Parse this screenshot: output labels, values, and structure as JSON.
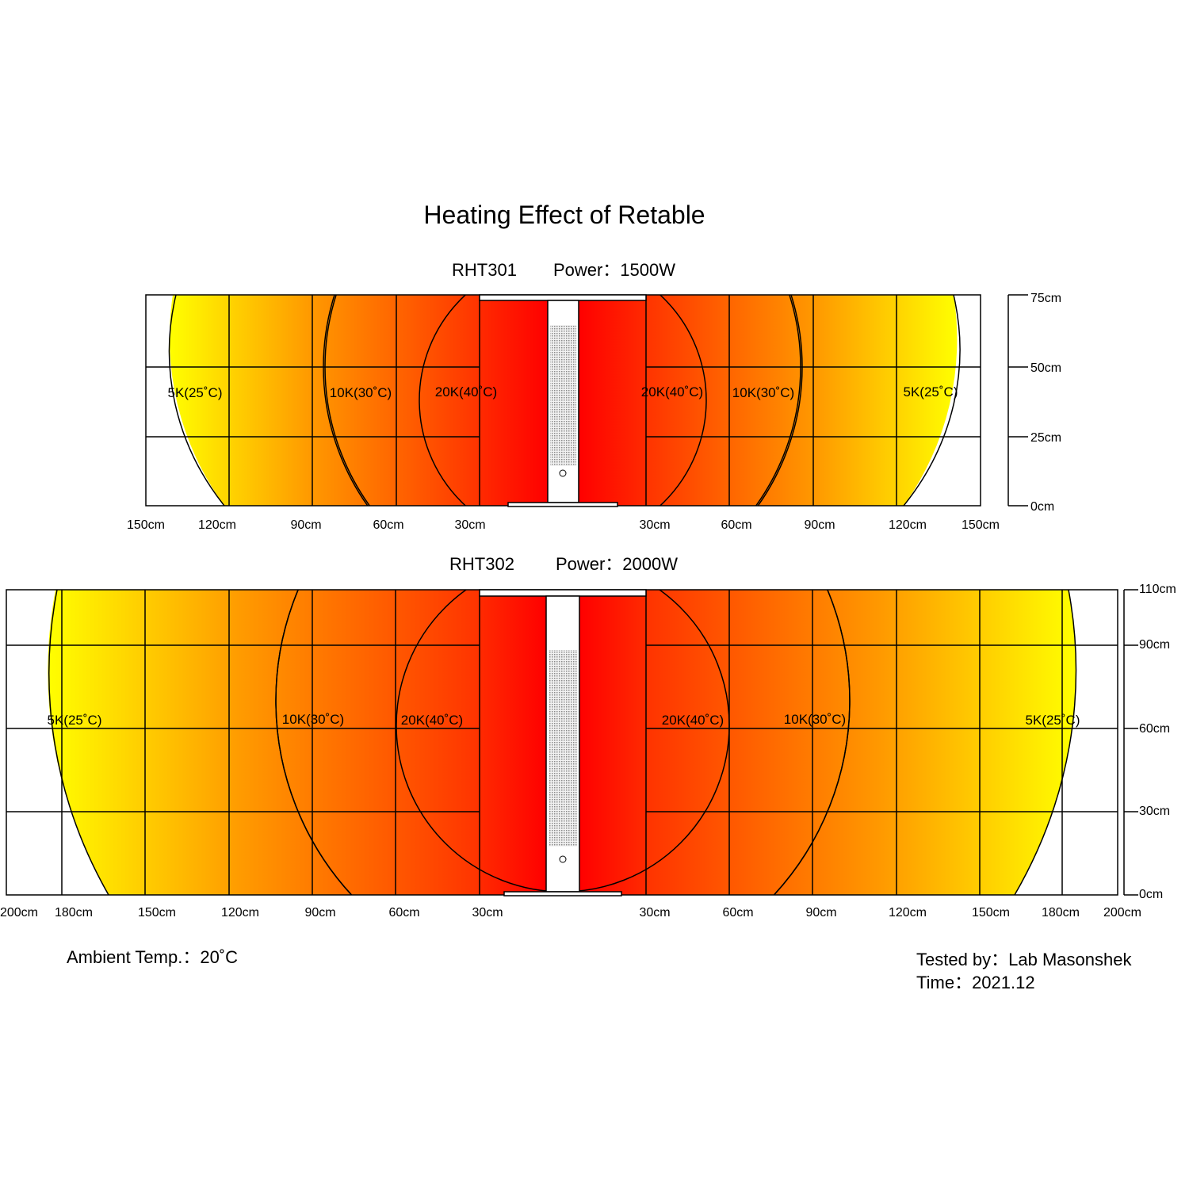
{
  "title": "Heating Effect of Retable",
  "colors": {
    "hot": "#ff0000",
    "warm": "#ff7a00",
    "cool": "#ffff00",
    "line": "#000000"
  },
  "panels": [
    {
      "model": "RHT301",
      "power": "Power：1500W",
      "x_ticks_left": [
        "150cm",
        "120cm",
        "90cm",
        "60cm",
        "30cm"
      ],
      "x_ticks_right": [
        "30cm",
        "60cm",
        "90cm",
        "120cm",
        "150cm"
      ],
      "y_ticks": [
        "75cm",
        "50cm",
        "25cm",
        "0cm"
      ],
      "zones_left": [
        "5K(25˚C)",
        "10K(30˚C)",
        "20K(40˚C)"
      ],
      "zones_right": [
        "20K(40˚C)",
        "10K(30˚C)",
        "5K(25˚C)"
      ]
    },
    {
      "model": "RHT302",
      "power": "Power：2000W",
      "x_ticks_left": [
        "200cm",
        "180cm",
        "150cm",
        "120cm",
        "90cm",
        "60cm",
        "30cm"
      ],
      "x_ticks_right": [
        "30cm",
        "60cm",
        "90cm",
        "120cm",
        "150cm",
        "180cm",
        "200cm"
      ],
      "y_ticks": [
        "110cm",
        "90cm",
        "60cm",
        "30cm",
        "0cm"
      ],
      "zones_left": [
        "5K(25˚C)",
        "10K(30˚C)",
        "20K(40˚C)"
      ],
      "zones_right": [
        "20K(40˚C)",
        "10K(30˚C)",
        "5K(25˚C)"
      ]
    }
  ],
  "footer": {
    "ambient": "Ambient Temp.：20˚C",
    "tested_by": "Tested by：Lab Masonshek",
    "time": "Time：2021.12"
  }
}
